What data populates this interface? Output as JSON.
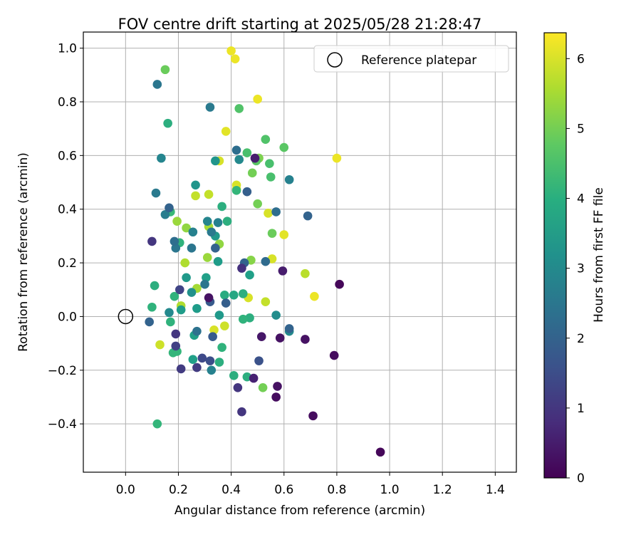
{
  "chart_data": {
    "type": "scatter",
    "title": "FOV centre drift starting at 2025/05/28 21:28:47",
    "xlabel": "Angular distance from reference (arcmin)",
    "ylabel": "Rotation from reference (arcmin)",
    "xlim": [
      -0.16,
      1.48
    ],
    "ylim": [
      -0.58,
      1.06
    ],
    "xticks": [
      0.0,
      0.2,
      0.4,
      0.6,
      0.8,
      1.0,
      1.2,
      1.4
    ],
    "xtick_labels": [
      "0.0",
      "0.2",
      "0.4",
      "0.6",
      "0.8",
      "1.0",
      "1.2",
      "1.4"
    ],
    "yticks": [
      -0.4,
      -0.2,
      0.0,
      0.2,
      0.4,
      0.6,
      0.8,
      1.0
    ],
    "ytick_labels": [
      "−0.4",
      "−0.2",
      "0.0",
      "0.2",
      "0.4",
      "0.6",
      "0.8",
      "1.0"
    ],
    "grid": true,
    "legend": {
      "placement": "top-right",
      "entries": [
        {
          "label": "Reference platepar",
          "marker": "open-circle"
        }
      ]
    },
    "reference_point": {
      "x": 0.0,
      "y": 0.0
    },
    "colorbar": {
      "label": "Hours from first FF file",
      "colormap": "viridis",
      "range": [
        0,
        6.37
      ],
      "ticks": [
        0,
        1,
        2,
        3,
        4,
        5,
        6
      ],
      "tick_labels": [
        "0",
        "1",
        "2",
        "3",
        "4",
        "5",
        "6"
      ]
    },
    "series": [
      {
        "columns": [
          "x",
          "y",
          "hours"
        ],
        "points": [
          [
            0.4,
            0.99,
            6.2
          ],
          [
            0.415,
            0.96,
            6.2
          ],
          [
            0.5,
            0.81,
            6.2
          ],
          [
            0.38,
            0.69,
            6.1
          ],
          [
            0.8,
            0.59,
            6.2
          ],
          [
            0.355,
            0.58,
            6.0
          ],
          [
            0.42,
            0.49,
            6.0
          ],
          [
            0.42,
            0.475,
            6.1
          ],
          [
            0.54,
            0.385,
            6.0
          ],
          [
            0.6,
            0.305,
            6.1
          ],
          [
            0.555,
            0.215,
            6.0
          ],
          [
            0.715,
            0.075,
            6.2
          ],
          [
            0.465,
            0.07,
            6.0
          ],
          [
            0.335,
            -0.05,
            6.0
          ],
          [
            0.375,
            -0.035,
            5.9
          ],
          [
            0.13,
            -0.105,
            5.9
          ],
          [
            0.53,
            0.055,
            5.8
          ],
          [
            0.68,
            0.16,
            5.7
          ],
          [
            0.265,
            0.45,
            5.8
          ],
          [
            0.315,
            0.455,
            5.8
          ],
          [
            0.21,
            0.04,
            5.6
          ],
          [
            0.27,
            0.105,
            5.5
          ],
          [
            0.225,
            0.2,
            5.6
          ],
          [
            0.315,
            0.335,
            5.5
          ],
          [
            0.195,
            0.355,
            5.4
          ],
          [
            0.23,
            0.33,
            5.3
          ],
          [
            0.31,
            0.22,
            5.4
          ],
          [
            0.355,
            0.27,
            5.3
          ],
          [
            0.475,
            0.21,
            5.2
          ],
          [
            0.505,
            0.59,
            5.1
          ],
          [
            0.48,
            0.535,
            5.0
          ],
          [
            0.5,
            0.42,
            5.0
          ],
          [
            0.555,
            0.31,
            4.9
          ],
          [
            0.52,
            -0.265,
            5.0
          ],
          [
            0.15,
            0.92,
            4.9
          ],
          [
            0.43,
            0.775,
            4.6
          ],
          [
            0.53,
            0.66,
            4.6
          ],
          [
            0.6,
            0.63,
            4.7
          ],
          [
            0.46,
            0.61,
            4.5
          ],
          [
            0.545,
            0.57,
            4.5
          ],
          [
            0.55,
            0.52,
            4.5
          ],
          [
            0.495,
            0.58,
            4.7
          ],
          [
            0.42,
            0.47,
            4.2
          ],
          [
            0.365,
            0.41,
            4.0
          ],
          [
            0.385,
            0.355,
            4.0
          ],
          [
            0.445,
            0.085,
            4.0
          ],
          [
            0.47,
            -0.005,
            4.0
          ],
          [
            0.445,
            -0.01,
            4.1
          ],
          [
            0.365,
            -0.115,
            4.1
          ],
          [
            0.355,
            -0.17,
            4.0
          ],
          [
            0.41,
            -0.22,
            4.0
          ],
          [
            0.46,
            -0.225,
            4.0
          ],
          [
            0.17,
            -0.02,
            4.1
          ],
          [
            0.18,
            -0.135,
            4.2
          ],
          [
            0.195,
            -0.13,
            4.2
          ],
          [
            0.17,
            0.39,
            4.3
          ],
          [
            0.205,
            0.275,
            4.1
          ],
          [
            0.185,
            0.075,
            4.1
          ],
          [
            0.12,
            -0.4,
            4.2
          ],
          [
            0.1,
            0.035,
            4.1
          ],
          [
            0.11,
            0.115,
            4.0
          ],
          [
            0.16,
            0.72,
            4.0
          ],
          [
            0.305,
            0.145,
            3.6
          ],
          [
            0.375,
            0.08,
            3.9
          ],
          [
            0.41,
            0.08,
            3.8
          ],
          [
            0.47,
            0.155,
            3.6
          ],
          [
            0.35,
            0.205,
            3.5
          ],
          [
            0.34,
            0.58,
            3.3
          ],
          [
            0.43,
            0.585,
            3.0
          ],
          [
            0.265,
            0.49,
            3.3
          ],
          [
            0.34,
            0.3,
            3.4
          ],
          [
            0.355,
            0.005,
            3.4
          ],
          [
            0.27,
            0.03,
            3.5
          ],
          [
            0.26,
            -0.07,
            3.6
          ],
          [
            0.255,
            -0.16,
            3.6
          ],
          [
            0.25,
            0.09,
            3.2
          ],
          [
            0.23,
            0.145,
            3.4
          ],
          [
            0.21,
            0.025,
            3.5
          ],
          [
            0.165,
            0.015,
            3.0
          ],
          [
            0.135,
            0.59,
            2.9
          ],
          [
            0.32,
            0.78,
            2.6
          ],
          [
            0.57,
            0.005,
            3.1
          ],
          [
            0.62,
            -0.055,
            3.0
          ],
          [
            0.31,
            0.355,
            2.9
          ],
          [
            0.325,
            0.315,
            2.6
          ],
          [
            0.35,
            0.35,
            2.8
          ],
          [
            0.62,
            0.51,
            2.8
          ],
          [
            0.25,
            0.255,
            2.5
          ],
          [
            0.255,
            0.315,
            2.8
          ],
          [
            0.19,
            0.255,
            2.5
          ],
          [
            0.15,
            0.38,
            2.7
          ],
          [
            0.115,
            0.46,
            2.6
          ],
          [
            0.12,
            0.865,
            2.5
          ],
          [
            0.42,
            0.62,
            2.3
          ],
          [
            0.57,
            0.39,
            2.3
          ],
          [
            0.3,
            0.12,
            2.5
          ],
          [
            0.325,
            -0.2,
            2.8
          ],
          [
            0.27,
            -0.055,
            2.4
          ],
          [
            0.185,
            0.28,
            2.3
          ],
          [
            0.34,
            0.255,
            2.0
          ],
          [
            0.53,
            0.205,
            2.2
          ],
          [
            0.45,
            0.2,
            2.0
          ],
          [
            0.46,
            0.465,
            1.9
          ],
          [
            0.69,
            0.375,
            2.0
          ],
          [
            0.62,
            -0.045,
            2.0
          ],
          [
            0.09,
            -0.02,
            2.0
          ],
          [
            0.165,
            0.405,
            2.0
          ],
          [
            0.38,
            0.05,
            1.9
          ],
          [
            0.32,
            0.055,
            1.8
          ],
          [
            0.33,
            -0.075,
            1.8
          ],
          [
            0.32,
            -0.165,
            1.5
          ],
          [
            0.29,
            -0.155,
            1.4
          ],
          [
            0.505,
            -0.165,
            1.6
          ],
          [
            0.205,
            0.1,
            1.3
          ],
          [
            0.19,
            -0.11,
            1.2
          ],
          [
            0.19,
            -0.065,
            1.0
          ],
          [
            0.1,
            0.28,
            1.0
          ],
          [
            0.21,
            -0.195,
            1.1
          ],
          [
            0.27,
            -0.19,
            1.1
          ],
          [
            0.425,
            -0.265,
            1.0
          ],
          [
            0.44,
            -0.355,
            1.0
          ],
          [
            0.44,
            0.18,
            0.9
          ],
          [
            0.49,
            0.59,
            0.5
          ],
          [
            0.485,
            -0.23,
            0.6
          ],
          [
            0.515,
            -0.075,
            0.4
          ],
          [
            0.315,
            0.07,
            0.3
          ],
          [
            0.575,
            -0.26,
            0.3
          ],
          [
            0.57,
            -0.3,
            0.2
          ],
          [
            0.585,
            -0.08,
            0.3
          ],
          [
            0.595,
            0.17,
            0.5
          ],
          [
            0.68,
            -0.085,
            0.3
          ],
          [
            0.71,
            -0.37,
            0.2
          ],
          [
            0.79,
            -0.145,
            0.2
          ],
          [
            0.81,
            0.12,
            0.1
          ],
          [
            0.965,
            -0.505,
            0.1
          ]
        ]
      }
    ]
  }
}
